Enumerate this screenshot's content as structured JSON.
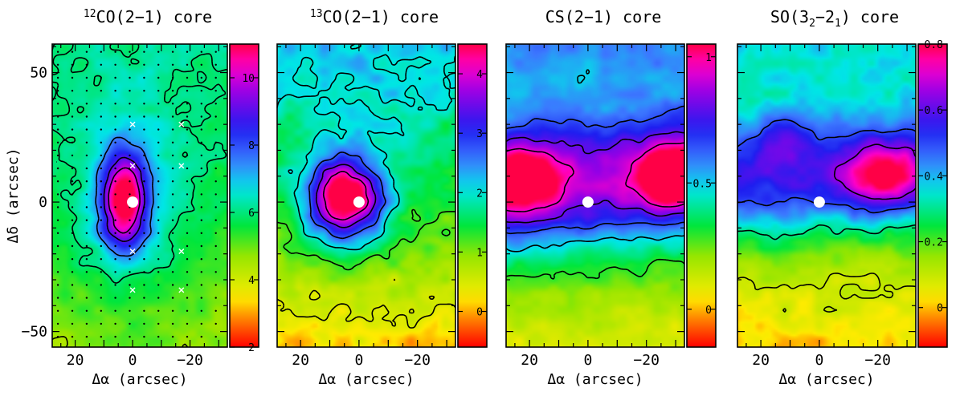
{
  "chart_data": [
    {
      "type": "heatmap",
      "title": {
        "prefix": "",
        "sup": "12",
        "main": "CO(2−1) core",
        "sub": ""
      },
      "xlabel": "Δα (arcsec)",
      "ylabel": "Δδ (arcsec)",
      "xlim": [
        28,
        -33
      ],
      "ylim": [
        -56,
        61
      ],
      "xticks": [
        20,
        0,
        -20
      ],
      "xtick_labels": [
        "20",
        "0",
        "−20"
      ],
      "yticks": [
        50,
        0,
        -50
      ],
      "ytick_labels": [
        "50",
        "0",
        "−50"
      ],
      "colorbar": {
        "range": [
          2,
          11
        ],
        "ticks": [
          2,
          4,
          6,
          8,
          10
        ],
        "tick_labels": [
          "2",
          "4",
          "6",
          "8",
          "10"
        ]
      },
      "peak": {
        "x": 3,
        "y": 0,
        "value": 10.8,
        "sx": 6,
        "sy": 13
      },
      "background": 5.2,
      "gradient_y": 0.012,
      "ridge": {
        "amp": 1.2,
        "sx": 22
      },
      "noise": 0.35,
      "contour_levels": [
        4.5,
        6,
        7.5,
        9,
        10
      ],
      "source_marker": {
        "x": 0,
        "y": 0
      },
      "crosses": [
        [
          0,
          30
        ],
        [
          -17,
          30
        ],
        [
          0,
          14
        ],
        [
          -17,
          14
        ],
        [
          0,
          -19
        ],
        [
          -17,
          -19
        ],
        [
          0,
          -34
        ],
        [
          -17,
          -34
        ]
      ],
      "grid_dots": true
    },
    {
      "type": "heatmap",
      "title": {
        "prefix": "",
        "sup": "13",
        "main": "CO(2−1) core",
        "sub": ""
      },
      "xlabel": "Δα (arcsec)",
      "ylabel": "",
      "xlim": [
        28,
        -33
      ],
      "ylim": [
        -56,
        61
      ],
      "xticks": [
        20,
        0,
        -20
      ],
      "xtick_labels": [
        "20",
        "0",
        "−20"
      ],
      "yticks": [
        50,
        0,
        -50
      ],
      "ytick_labels": [],
      "colorbar": {
        "range": [
          -0.6,
          4.5
        ],
        "ticks": [
          0,
          1,
          2,
          3,
          4
        ],
        "tick_labels": [
          "0",
          "1",
          "2",
          "3",
          "4"
        ]
      },
      "peak": {
        "x": 5,
        "y": 1,
        "value": 4.4,
        "sx": 9,
        "sy": 11
      },
      "background": 1.0,
      "gradient_y": 0.018,
      "ridge": {
        "amp": 0.6,
        "sx": 24
      },
      "noise": 0.3,
      "contour_levels": [
        0.5,
        1.25,
        2,
        2.75,
        3.5,
        4.1
      ],
      "source_marker": {
        "x": 0,
        "y": 0
      },
      "crosses": [],
      "grid_dots": false
    },
    {
      "type": "heatmap",
      "title": {
        "prefix": "CS(2−1) core",
        "sup": "",
        "main": "",
        "sub": ""
      },
      "xlabel": "Δα (arcsec)",
      "ylabel": "",
      "xlim": [
        28,
        -33
      ],
      "ylim": [
        -56,
        61
      ],
      "xticks": [
        20,
        0,
        -20
      ],
      "xtick_labels": [
        "20",
        "0",
        "−20"
      ],
      "yticks": [
        50,
        0,
        -50
      ],
      "ytick_labels": [],
      "colorbar": {
        "range": [
          -0.15,
          1.05
        ],
        "ticks": [
          0,
          0.5,
          1
        ],
        "tick_labels": [
          "0",
          "0.5",
          "1"
        ]
      },
      "band": {
        "y": 6,
        "sy": 17,
        "amp": 0.55,
        "slope": -0.1
      },
      "blobs": [
        {
          "x": 22,
          "y": 10,
          "value": 0.35,
          "sx": 9,
          "sy": 10
        },
        {
          "x": -29,
          "y": 10,
          "value": 0.5,
          "sx": 7,
          "sy": 8
        }
      ],
      "background": 0.32,
      "gradient_y": 0.004,
      "noise": 0.05,
      "contour_levels": [
        0.3,
        0.5,
        0.65,
        0.8,
        0.95
      ],
      "source_marker": {
        "x": 0,
        "y": 0
      },
      "crosses": [],
      "grid_dots": false
    },
    {
      "type": "heatmap",
      "title": {
        "prefix": "SO(3",
        "sup": "",
        "main": "−2",
        "sub": "2",
        "sub2": "1",
        "suffix": ") core"
      },
      "xlabel": "Δα (arcsec)",
      "ylabel": "",
      "xlim": [
        28,
        -33
      ],
      "ylim": [
        -56,
        61
      ],
      "xticks": [
        20,
        0,
        -20
      ],
      "xtick_labels": [
        "20",
        "0",
        "−20"
      ],
      "yticks": [
        50,
        0,
        -50
      ],
      "ytick_labels": [],
      "colorbar": {
        "range": [
          -0.12,
          0.8
        ],
        "ticks": [
          0,
          0.2,
          0.4,
          0.6,
          0.8
        ],
        "tick_labels": [
          "0",
          "0.2",
          "0.4",
          "0.6",
          "0.8"
        ]
      },
      "band": {
        "y": 10,
        "sy": 16,
        "amp": 0.36,
        "slope": -0.05
      },
      "blobs": [
        {
          "x": -22,
          "y": 10,
          "value": 0.3,
          "sx": 9,
          "sy": 9
        },
        {
          "x": 12,
          "y": 25,
          "value": 0.1,
          "sx": 6,
          "sy": 7
        }
      ],
      "background": 0.18,
      "gradient_y": 0.003,
      "noise": 0.045,
      "contour_levels": [
        0.1,
        0.3,
        0.5,
        0.65
      ],
      "source_marker": {
        "x": 0,
        "y": 0
      },
      "crosses": [],
      "grid_dots": false
    }
  ]
}
